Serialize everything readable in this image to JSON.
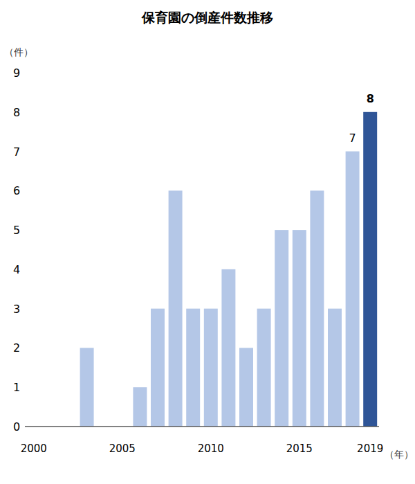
{
  "chart_data": {
    "type": "bar",
    "title": "保育園の倒産件数推移",
    "y_label": "（件）",
    "x_label": "（年）",
    "categories": [
      "2000",
      null,
      null,
      null,
      null,
      "2005",
      null,
      null,
      null,
      null,
      "2010",
      null,
      null,
      null,
      null,
      "2015",
      null,
      null,
      null,
      "2019"
    ],
    "values": [
      0,
      0,
      0,
      2,
      0,
      0,
      1,
      3,
      6,
      3,
      3,
      4,
      2,
      3,
      5,
      5,
      6,
      3,
      7,
      8
    ],
    "colors": [
      "#b4c7e7",
      "#b4c7e7",
      "#b4c7e7",
      "#b4c7e7",
      "#b4c7e7",
      "#b4c7e7",
      "#b4c7e7",
      "#b4c7e7",
      "#b4c7e7",
      "#b4c7e7",
      "#b4c7e7",
      "#b4c7e7",
      "#b4c7e7",
      "#b4c7e7",
      "#b4c7e7",
      "#b4c7e7",
      "#b4c7e7",
      "#b4c7e7",
      "#b4c7e7",
      "#2f5597"
    ],
    "data_labels": true,
    "value_labels": [
      null,
      null,
      null,
      null,
      null,
      null,
      null,
      null,
      null,
      null,
      null,
      null,
      null,
      null,
      null,
      null,
      null,
      null,
      "7",
      "8"
    ],
    "ylim": [
      0,
      9
    ],
    "yticks": [
      0,
      1,
      2,
      3,
      4,
      5,
      6,
      7,
      8,
      9
    ],
    "grid": false
  }
}
